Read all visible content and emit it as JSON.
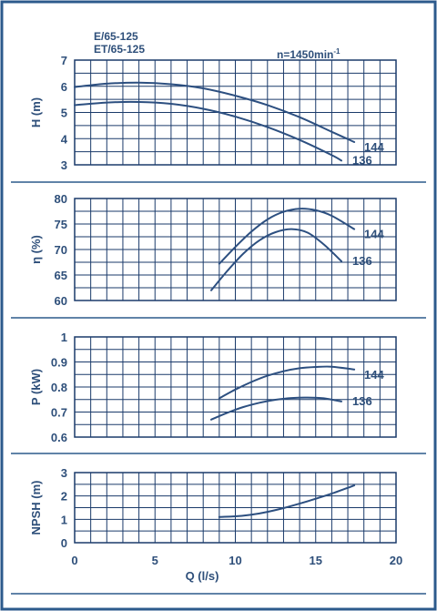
{
  "header": {
    "model_line1": "E/65-125",
    "model_line2": "ET/65-125",
    "speed_label": "n=1450min",
    "speed_exponent": "-1"
  },
  "colors": {
    "frame": "#2c5a8c",
    "axis_text": "#2e4f7a",
    "grid": "#1a3a6a",
    "curve": "#2c4f80",
    "background": "#ffffff"
  },
  "chart_data": [
    {
      "id": "head",
      "type": "line",
      "ylabel": "H (m)",
      "ylim": [
        3,
        7
      ],
      "yticks": [
        "3",
        "4",
        "5",
        "6",
        "7"
      ],
      "xlim": [
        0,
        20
      ],
      "grid": true,
      "series": [
        {
          "name": "144",
          "x": [
            0,
            2,
            4,
            6,
            8,
            10,
            12,
            14,
            16,
            17.4
          ],
          "values": [
            5.97,
            6.1,
            6.14,
            6.08,
            5.92,
            5.64,
            5.28,
            4.82,
            4.26,
            3.87
          ]
        },
        {
          "name": "136",
          "x": [
            0,
            2,
            4,
            6,
            8,
            10,
            12,
            14,
            16,
            16.6
          ],
          "values": [
            5.28,
            5.38,
            5.4,
            5.33,
            5.14,
            4.84,
            4.44,
            3.95,
            3.37,
            3.16
          ]
        }
      ]
    },
    {
      "id": "efficiency",
      "type": "line",
      "ylabel": "η (%)",
      "ylim": [
        60,
        80
      ],
      "yticks": [
        "60",
        "65",
        "70",
        "75",
        "80"
      ],
      "xlim": [
        0,
        20
      ],
      "grid": true,
      "series": [
        {
          "name": "144",
          "x": [
            9,
            10,
            11,
            12,
            13,
            14,
            15,
            16,
            17.4
          ],
          "values": [
            67.2,
            70.5,
            73.5,
            75.9,
            77.4,
            78.0,
            77.7,
            76.6,
            74.0
          ]
        },
        {
          "name": "136",
          "x": [
            8.5,
            9.5,
            10.5,
            11.5,
            12.5,
            13.5,
            14.5,
            15.5,
            16.6
          ],
          "values": [
            62.0,
            65.8,
            69.2,
            71.8,
            73.4,
            74.0,
            73.3,
            71.0,
            67.7
          ]
        }
      ]
    },
    {
      "id": "power",
      "type": "line",
      "ylabel": "P (kW)",
      "ylim": [
        0.6,
        1.0
      ],
      "yticks": [
        "0.6",
        "0.7",
        "0.8",
        "0.9",
        "1"
      ],
      "xlim": [
        0,
        20
      ],
      "grid": true,
      "series": [
        {
          "name": "144",
          "x": [
            9,
            10,
            11,
            12,
            13,
            14,
            15,
            16,
            17.4
          ],
          "values": [
            0.755,
            0.79,
            0.82,
            0.845,
            0.863,
            0.875,
            0.88,
            0.881,
            0.87
          ]
        },
        {
          "name": "136",
          "x": [
            8.5,
            9.5,
            10.5,
            11.5,
            12.5,
            13.5,
            14.5,
            15.5,
            16.6
          ],
          "values": [
            0.67,
            0.697,
            0.72,
            0.737,
            0.749,
            0.756,
            0.758,
            0.755,
            0.742
          ]
        }
      ]
    },
    {
      "id": "npsh",
      "type": "line",
      "ylabel": "NPSH (m)",
      "ylim": [
        0,
        3
      ],
      "yticks": [
        "0",
        "1",
        "2",
        "3"
      ],
      "xlabel": "Q (l/s)",
      "xlim": [
        0,
        20
      ],
      "xticks": [
        "0",
        "5",
        "10",
        "15",
        "20"
      ],
      "grid": true,
      "series": [
        {
          "x": [
            9,
            10,
            11,
            12,
            13,
            14,
            15,
            16,
            17.4
          ],
          "values": [
            1.1,
            1.13,
            1.2,
            1.32,
            1.48,
            1.67,
            1.88,
            2.1,
            2.45
          ]
        }
      ]
    }
  ]
}
